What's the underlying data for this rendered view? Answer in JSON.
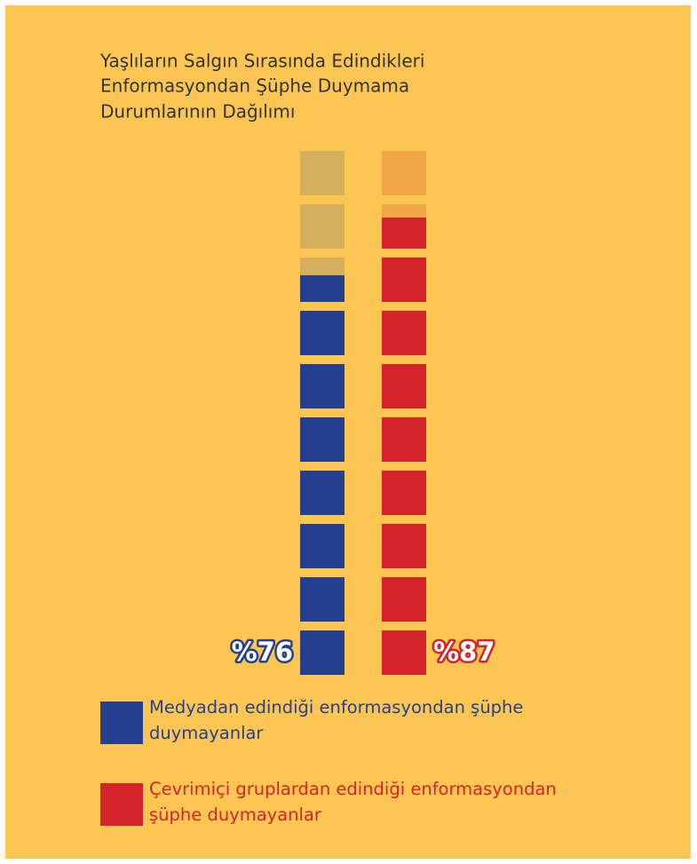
{
  "chart_data": {
    "type": "block-column",
    "title": [
      "Yaşlıların Salgın Sırasında Edindikleri",
      "Enformasyondan Şüphe Duymama",
      "Durumlarının Dağılımı"
    ],
    "ylim": [
      0,
      100
    ],
    "blocks": 10,
    "series": [
      {
        "name": "Medyadan edindiği enformasyondan şüphe duymayanlar",
        "color": "#25408f",
        "empty_color": "#d5b05c",
        "values": [
          76
        ],
        "value_labels": [
          "%76"
        ]
      },
      {
        "name": "Çevrimiçi gruplardan edindiği enformasyondan şüphe duymayanlar",
        "color": "#d4232b",
        "empty_color": "#f3a646",
        "values": [
          87
        ],
        "value_labels": [
          "%87"
        ]
      }
    ]
  }
}
